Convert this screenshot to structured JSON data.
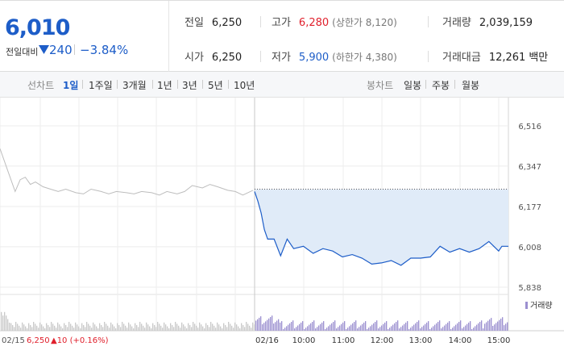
{
  "summary": {
    "price": "6,010",
    "change_label": "전일대비",
    "change_value": "240",
    "change_pct": "−3.84%",
    "prev_close_label": "전일",
    "prev_close": "6,250",
    "high_label": "고가",
    "high": "6,280",
    "upper_limit_note": "(상한가 8,120)",
    "volume_label": "거래량",
    "volume": "2,039,159",
    "open_label": "시가",
    "open": "6,250",
    "low_label": "저가",
    "low": "5,900",
    "lower_limit_note": "(하한가 4,380)",
    "amount_label": "거래대금",
    "amount": "12,261",
    "amount_unit": "백만"
  },
  "period_bar": {
    "line_label": "선차트",
    "line_tabs": [
      "1일",
      "1주일",
      "3개월",
      "1년",
      "3년",
      "5년",
      "10년"
    ],
    "candle_label": "봉차트",
    "candle_tabs": [
      "일봉",
      "주봉",
      "월봉"
    ]
  },
  "colors": {
    "down": "#1d5dc8",
    "up": "#e0202c",
    "fill": "#e0ebf8",
    "prev_line": "#bdbdbd"
  },
  "chart_data": {
    "type": "line",
    "y_ticks": [
      "6,516",
      "6,347",
      "6,177",
      "6,008",
      "5,838"
    ],
    "ylim": [
      5838,
      6516
    ],
    "x_ticks": [
      "02/16",
      "10:00",
      "11:00",
      "12:00",
      "13:00",
      "14:00",
      "15:00"
    ],
    "prev_day": {
      "date": "02/15",
      "close": "6,250",
      "change": "▲10 (+0.16%)"
    },
    "volume_legend": "거래량",
    "reference_price": 6250,
    "series": [
      {
        "name": "02/15",
        "x": [
          0,
          0.03,
          0.06,
          0.08,
          0.1,
          0.12,
          0.14,
          0.17,
          0.2,
          0.23,
          0.26,
          0.3,
          0.33,
          0.36,
          0.4,
          0.43,
          0.46,
          0.5,
          0.53,
          0.56,
          0.6,
          0.63,
          0.66,
          0.7,
          0.73,
          0.76,
          0.8,
          0.83,
          0.86,
          0.9,
          0.93,
          0.96,
          1
        ],
        "y": [
          6420,
          6330,
          6240,
          6290,
          6300,
          6270,
          6280,
          6260,
          6250,
          6240,
          6250,
          6235,
          6230,
          6250,
          6240,
          6230,
          6240,
          6235,
          6230,
          6240,
          6235,
          6225,
          6240,
          6230,
          6240,
          6265,
          6255,
          6270,
          6260,
          6245,
          6240,
          6225,
          6245
        ]
      },
      {
        "name": "02/16",
        "x": [
          "09:00",
          "09:05",
          "09:10",
          "09:15",
          "09:20",
          "09:30",
          "09:40",
          "09:50",
          "10:00",
          "10:15",
          "10:30",
          "10:45",
          "11:00",
          "11:15",
          "11:30",
          "11:45",
          "12:00",
          "12:15",
          "12:30",
          "12:45",
          "13:00",
          "13:15",
          "13:30",
          "13:45",
          "14:00",
          "14:15",
          "14:30",
          "14:45",
          "15:00",
          "15:15",
          "15:20"
        ],
        "y": [
          6240,
          6200,
          6150,
          6080,
          6040,
          6040,
          5970,
          6040,
          6000,
          6010,
          5980,
          6000,
          5990,
          5965,
          5975,
          5960,
          5935,
          5940,
          5950,
          5930,
          5960,
          5960,
          5965,
          6010,
          5985,
          6000,
          5985,
          6000,
          6030,
          5990,
          6010
        ]
      }
    ]
  }
}
